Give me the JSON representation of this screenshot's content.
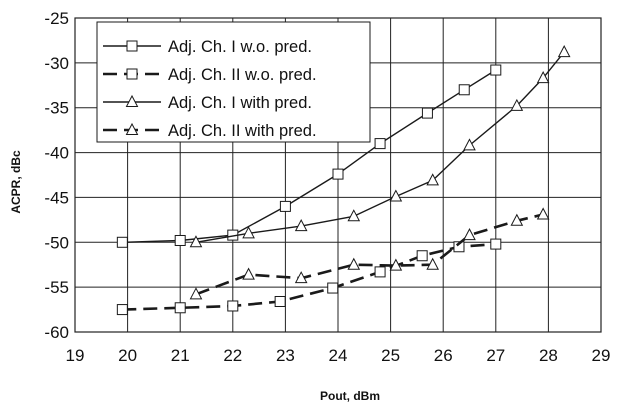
{
  "chart_data": {
    "type": "line",
    "title": "",
    "xlabel": "Pout, dBm",
    "ylabel": "ACPR, dBc",
    "xlim": [
      19,
      29
    ],
    "ylim": [
      -60,
      -25
    ],
    "x_ticks": [
      19,
      20,
      21,
      22,
      23,
      24,
      25,
      26,
      27,
      28,
      29
    ],
    "y_ticks": [
      -60,
      -55,
      -50,
      -45,
      -40,
      -35,
      -30,
      -25
    ],
    "grid": true,
    "legend_position": "top-left",
    "colors": {
      "line": "#1a1a1a",
      "grid": "#222222",
      "background": "#ffffff"
    },
    "series": [
      {
        "name": "Adj. Ch. I w.o. pred.",
        "line_style": "solid",
        "marker": "square",
        "x": [
          19.9,
          21.0,
          22.0,
          23.0,
          24.0,
          24.8,
          25.7,
          26.4,
          27.0
        ],
        "y": [
          -50.0,
          -49.8,
          -49.2,
          -46.0,
          -42.4,
          -39.0,
          -35.6,
          -33.0,
          -30.8
        ]
      },
      {
        "name": "Adj. Ch. II w.o. pred.",
        "line_style": "dashed",
        "marker": "square",
        "x": [
          19.9,
          21.0,
          22.0,
          22.9,
          23.9,
          24.8,
          25.6,
          26.3,
          27.0
        ],
        "y": [
          -57.5,
          -57.3,
          -57.1,
          -56.6,
          -55.1,
          -53.3,
          -51.5,
          -50.5,
          -50.2
        ]
      },
      {
        "name": "Adj. Ch. I with pred.",
        "line_style": "solid",
        "marker": "triangle",
        "x": [
          21.3,
          22.3,
          23.3,
          24.3,
          25.1,
          25.8,
          26.5,
          27.4,
          27.9,
          28.3
        ],
        "y": [
          -50.0,
          -49.0,
          -48.2,
          -47.1,
          -44.9,
          -43.1,
          -39.2,
          -34.8,
          -31.7,
          -28.8
        ]
      },
      {
        "name": "Adj. Ch. II with pred.",
        "line_style": "dashed",
        "marker": "triangle",
        "x": [
          21.3,
          22.3,
          23.3,
          24.3,
          25.1,
          25.8,
          26.5,
          27.4,
          27.9
        ],
        "y": [
          -55.8,
          -53.6,
          -54.0,
          -52.5,
          -52.6,
          -52.5,
          -49.2,
          -47.6,
          -46.9
        ]
      }
    ]
  }
}
